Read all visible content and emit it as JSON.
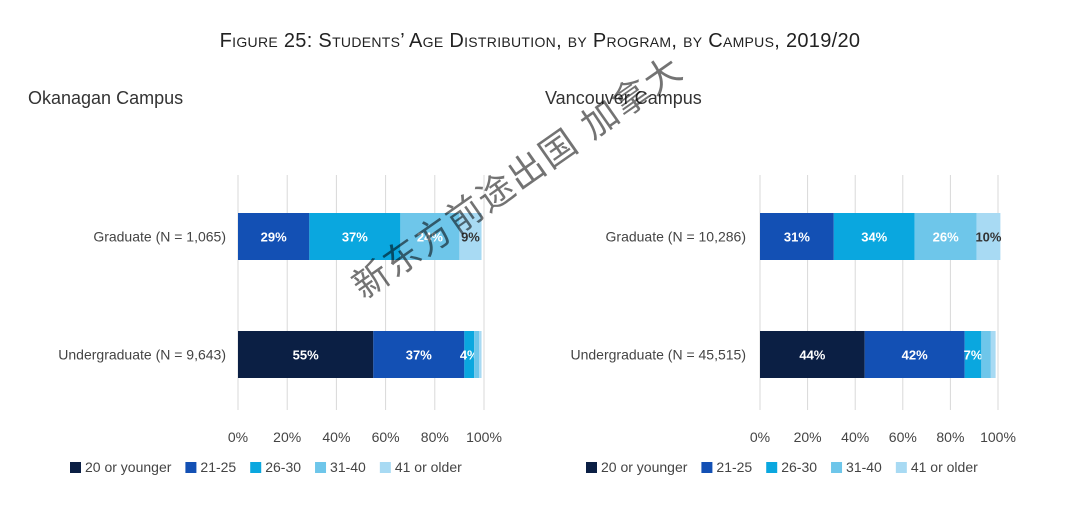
{
  "figure_title": "Figure 25: Students’ Age Distribution, by Program, by Campus, 2019/20",
  "watermark": "新东方前途出国 加拿大",
  "colors": {
    "20 or younger": "#0b1f44",
    "21-25": "#1350b4",
    "26-30": "#0aa7df",
    "31-40": "#6ec6ea",
    "41 or older": "#a8daf3"
  },
  "chart_data": [
    {
      "type": "bar",
      "orientation": "horizontal",
      "stacked": "percent",
      "title": "Okanagan Campus",
      "categories": [
        "Graduate (N = 1,065)",
        "Undergraduate (N = 9,643)"
      ],
      "series": [
        {
          "name": "20 or younger",
          "values": [
            0,
            55
          ],
          "labels": [
            "",
            "55%"
          ]
        },
        {
          "name": "21-25",
          "values": [
            29,
            37
          ],
          "labels": [
            "29%",
            "37%"
          ]
        },
        {
          "name": "26-30",
          "values": [
            37,
            4
          ],
          "labels": [
            "37%",
            "4%"
          ]
        },
        {
          "name": "31-40",
          "values": [
            24,
            2
          ],
          "labels": [
            "24%",
            ""
          ]
        },
        {
          "name": "41 or older",
          "values": [
            9,
            1
          ],
          "labels": [
            "9%",
            ""
          ]
        }
      ],
      "xlim": [
        0,
        100
      ],
      "xticks": [
        "0%",
        "20%",
        "40%",
        "60%",
        "80%",
        "100%"
      ],
      "grid": true,
      "legend": "bottom"
    },
    {
      "type": "bar",
      "orientation": "horizontal",
      "stacked": "percent",
      "title": "Vancouver Campus",
      "categories": [
        "Graduate (N = 10,286)",
        "Undergraduate (N = 45,515)"
      ],
      "series": [
        {
          "name": "20 or younger",
          "values": [
            0,
            44
          ],
          "labels": [
            "",
            "44%"
          ]
        },
        {
          "name": "21-25",
          "values": [
            31,
            42
          ],
          "labels": [
            "31%",
            "42%"
          ]
        },
        {
          "name": "26-30",
          "values": [
            34,
            7
          ],
          "labels": [
            "34%",
            "7%"
          ]
        },
        {
          "name": "31-40",
          "values": [
            26,
            4
          ],
          "labels": [
            "26%",
            ""
          ]
        },
        {
          "name": "41 or older",
          "values": [
            10,
            2
          ],
          "labels": [
            "10%",
            ""
          ]
        }
      ],
      "xlim": [
        0,
        100
      ],
      "xticks": [
        "0%",
        "20%",
        "40%",
        "60%",
        "80%",
        "100%"
      ],
      "grid": true,
      "legend": "bottom"
    }
  ]
}
